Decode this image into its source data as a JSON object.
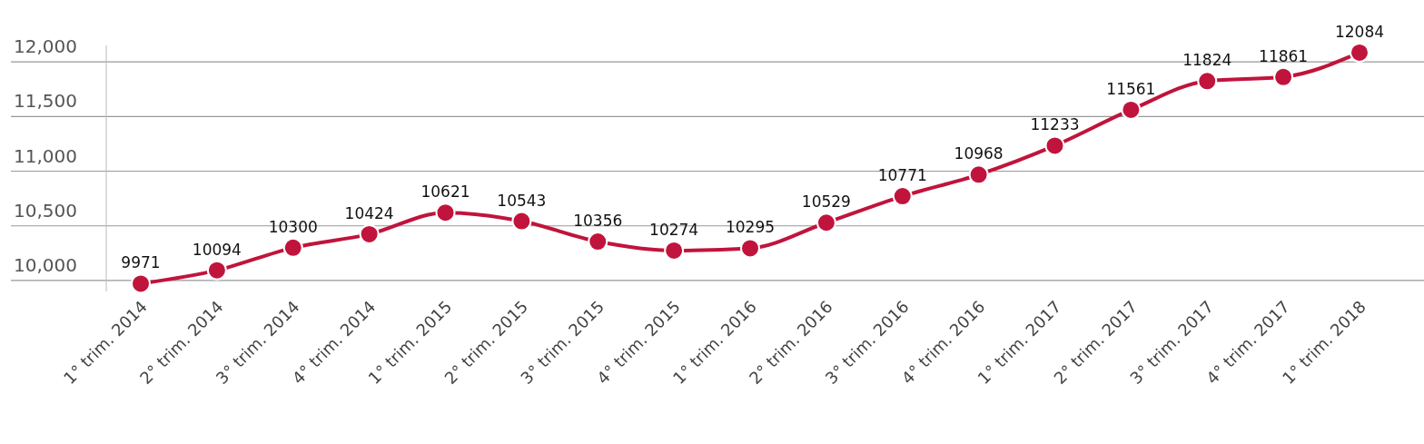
{
  "chart_data": {
    "type": "line",
    "categories": [
      "1° trim. 2014",
      "2° trim. 2014",
      "3° trim. 2014",
      "4° trim. 2014",
      "1° trim. 2015",
      "2° trim. 2015",
      "3° trim. 2015",
      "4° trim. 2015",
      "1° trim. 2016",
      "2° trim. 2016",
      "3° trim. 2016",
      "4° trim. 2016",
      "1° trim. 2017",
      "2° trim. 2017",
      "3° trim. 2017",
      "4° trim. 2017",
      "1° trim. 2018"
    ],
    "series": [
      {
        "color": "#c0143c",
        "values": [
          9971,
          10094,
          10300,
          10424,
          10621,
          10543,
          10356,
          10274,
          10295,
          10529,
          10771,
          10968,
          11233,
          11561,
          11824,
          11861,
          12084
        ]
      }
    ],
    "yticks": [
      {
        "value": 10000,
        "label": "10,000"
      },
      {
        "value": 10500,
        "label": "10,500"
      },
      {
        "value": 11000,
        "label": "11,000"
      },
      {
        "value": 11500,
        "label": "11,500"
      },
      {
        "value": 12000,
        "label": "12,000"
      }
    ],
    "ylim": [
      9900,
      12150
    ],
    "grid": "y",
    "marker": "circle",
    "line_style": "solid",
    "data_labels": true
  }
}
